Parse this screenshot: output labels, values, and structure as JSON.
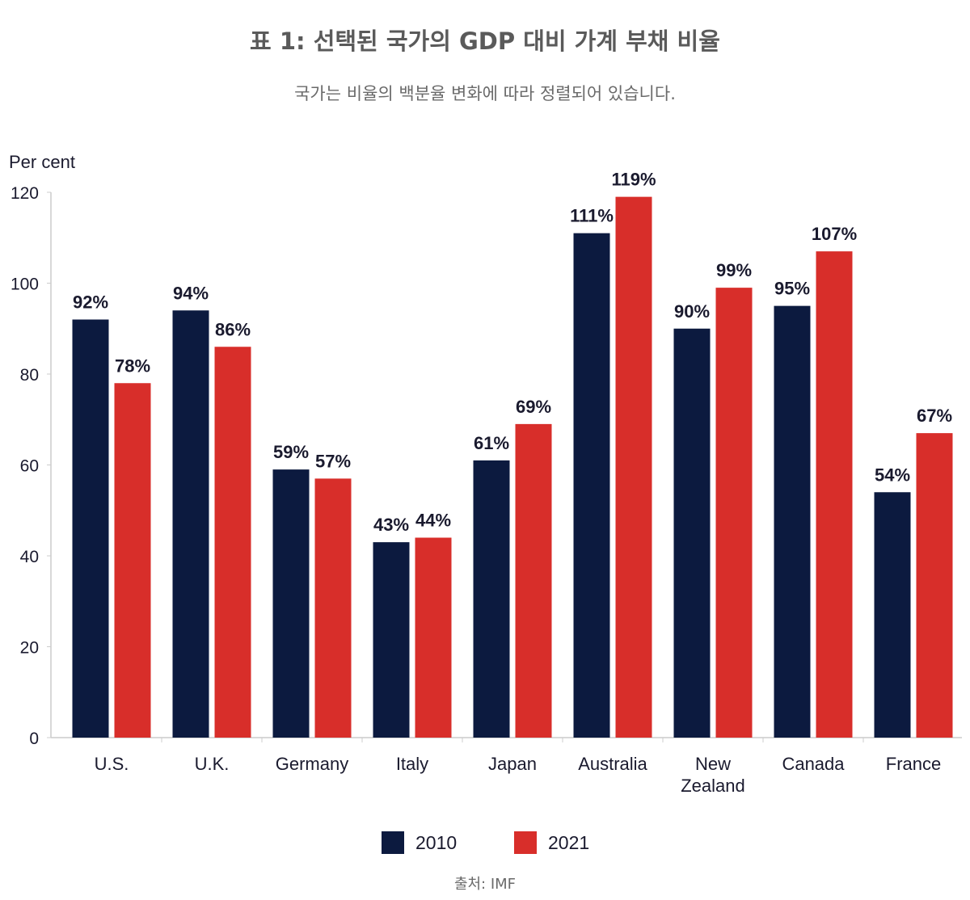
{
  "chart_data": {
    "type": "bar",
    "title": "표 1: 선택된 국가의 GDP 대비 가계 부채 비율",
    "subtitle": "국가는 비율의 백분율 변화에 따라 정렬되어 있습니다.",
    "ylabel": "Per cent",
    "xlabel": "",
    "ylim": [
      0,
      120
    ],
    "yticks": [
      0,
      20,
      40,
      60,
      80,
      100,
      120
    ],
    "grid": false,
    "legend_position": "bottom",
    "categories": [
      "U.S.",
      "U.K.",
      "Germany",
      "Italy",
      "Japan",
      "Australia",
      "New Zealand",
      "Canada",
      "France"
    ],
    "series": [
      {
        "name": "2010",
        "color": "#0c1a3f",
        "values": [
          92,
          94,
          59,
          43,
          61,
          111,
          90,
          95,
          54
        ],
        "labels": [
          "92%",
          "94%",
          "59%",
          "43%",
          "61%",
          "111%",
          "90%",
          "95%",
          "54%"
        ]
      },
      {
        "name": "2021",
        "color": "#d82e2a",
        "values": [
          78,
          86,
          57,
          44,
          69,
          119,
          99,
          107,
          67
        ],
        "labels": [
          "78%",
          "86%",
          "57%",
          "44%",
          "69%",
          "119%",
          "99%",
          "107%",
          "67%"
        ]
      }
    ],
    "source": "출처: IMF"
  }
}
